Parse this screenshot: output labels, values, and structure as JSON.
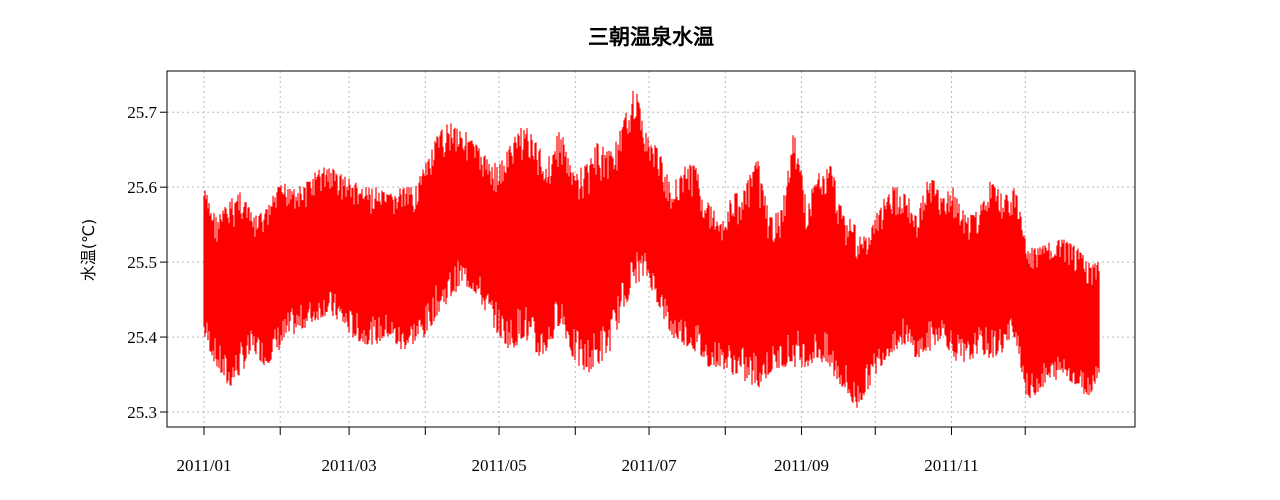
{
  "chart_data": {
    "type": "line",
    "title": "三朝温泉水温",
    "xlabel": "",
    "ylabel": "水温(℃)",
    "ylim": [
      25.28,
      25.755
    ],
    "xlim": [
      "2011-01-01",
      "2011-12-31"
    ],
    "yticks": [
      25.3,
      25.4,
      25.5,
      25.6,
      25.7
    ],
    "ytick_labels": [
      "25.3",
      "25.4",
      "25.5",
      "25.6",
      "25.7"
    ],
    "xticks": [
      "2011-01-01",
      "2011-02-01",
      "2011-03-01",
      "2011-04-01",
      "2011-05-01",
      "2011-06-01",
      "2011-07-01",
      "2011-08-01",
      "2011-09-01",
      "2011-10-01",
      "2011-11-01",
      "2011-12-01"
    ],
    "xtick_labels": [
      "2011/01",
      "",
      "2011/03",
      "",
      "2011/05",
      "",
      "2011/07",
      "",
      "2011/09",
      "",
      "2011/11",
      ""
    ],
    "grid": true,
    "color": "#ff0000",
    "series": [
      {
        "x": [
          "2011-01-01",
          "2011-01-06",
          "2011-01-11",
          "2011-01-16",
          "2011-01-21",
          "2011-01-26",
          "2011-01-31",
          "2011-02-05",
          "2011-02-10",
          "2011-02-15",
          "2011-02-20",
          "2011-02-25",
          "2011-03-02",
          "2011-03-07",
          "2011-03-12",
          "2011-03-17",
          "2011-03-22",
          "2011-03-27",
          "2011-04-01",
          "2011-04-06",
          "2011-04-11",
          "2011-04-16",
          "2011-04-21",
          "2011-04-26",
          "2011-05-01",
          "2011-05-06",
          "2011-05-11",
          "2011-05-16",
          "2011-05-21",
          "2011-05-26",
          "2011-05-31",
          "2011-06-05",
          "2011-06-10",
          "2011-06-15",
          "2011-06-20",
          "2011-06-25",
          "2011-06-30",
          "2011-07-05",
          "2011-07-10",
          "2011-07-15",
          "2011-07-20",
          "2011-07-25",
          "2011-07-30",
          "2011-08-04",
          "2011-08-09",
          "2011-08-14",
          "2011-08-19",
          "2011-08-24",
          "2011-08-29",
          "2011-09-03",
          "2011-09-08",
          "2011-09-13",
          "2011-09-18",
          "2011-09-23",
          "2011-09-28",
          "2011-10-03",
          "2011-10-08",
          "2011-10-13",
          "2011-10-18",
          "2011-10-23",
          "2011-10-28",
          "2011-11-02",
          "2011-11-07",
          "2011-11-12",
          "2011-11-17",
          "2011-11-22",
          "2011-11-27",
          "2011-12-02",
          "2011-12-07",
          "2011-12-12",
          "2011-12-17",
          "2011-12-22",
          "2011-12-27",
          "2011-12-31"
        ],
        "max": [
          25.6,
          25.56,
          25.58,
          25.6,
          25.56,
          25.57,
          25.6,
          25.61,
          25.6,
          25.62,
          25.63,
          25.62,
          25.61,
          25.6,
          25.6,
          25.59,
          25.6,
          25.6,
          25.63,
          25.67,
          25.69,
          25.68,
          25.66,
          25.64,
          25.63,
          25.66,
          25.69,
          25.66,
          25.64,
          25.68,
          25.62,
          25.63,
          25.66,
          25.65,
          25.68,
          25.74,
          25.67,
          25.65,
          25.6,
          25.63,
          25.63,
          25.58,
          25.56,
          25.59,
          25.6,
          25.64,
          25.56,
          25.57,
          25.68,
          25.58,
          25.62,
          25.63,
          25.57,
          25.55,
          25.53,
          25.58,
          25.6,
          25.6,
          25.56,
          25.62,
          25.59,
          25.6,
          25.56,
          25.57,
          25.61,
          25.59,
          25.6,
          25.52,
          25.52,
          25.53,
          25.53,
          25.52,
          25.5,
          25.5
        ],
        "min": [
          25.4,
          25.36,
          25.33,
          25.35,
          25.38,
          25.36,
          25.38,
          25.4,
          25.41,
          25.42,
          25.43,
          25.42,
          25.4,
          25.39,
          25.39,
          25.4,
          25.38,
          25.39,
          25.4,
          25.43,
          25.45,
          25.47,
          25.46,
          25.43,
          25.4,
          25.38,
          25.4,
          25.37,
          25.38,
          25.42,
          25.37,
          25.35,
          25.36,
          25.38,
          25.43,
          25.47,
          25.48,
          25.44,
          25.4,
          25.39,
          25.38,
          25.36,
          25.36,
          25.35,
          25.34,
          25.33,
          25.35,
          25.36,
          25.36,
          25.36,
          25.37,
          25.35,
          25.33,
          25.3,
          25.33,
          25.36,
          25.38,
          25.39,
          25.37,
          25.38,
          25.4,
          25.37,
          25.36,
          25.38,
          25.37,
          25.38,
          25.4,
          25.31,
          25.33,
          25.34,
          25.35,
          25.33,
          25.32,
          25.35
        ]
      }
    ]
  }
}
